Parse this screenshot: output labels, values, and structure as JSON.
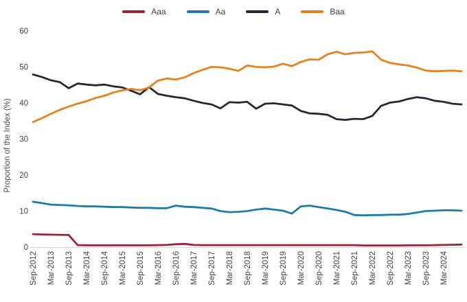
{
  "chart_data": {
    "type": "line",
    "title": "",
    "y_axis": {
      "title": "Proportion of the Index (%)",
      "min": 0,
      "max": 60,
      "tick_interval": 10,
      "ticks": [
        0,
        10,
        20,
        30,
        40,
        50,
        60
      ]
    },
    "x_axis": {
      "start_label": "Sep-2012",
      "tick_labels": [
        "Sep-2012",
        "Mar-2013",
        "Sep-2013",
        "Mar-2014",
        "Sep-2014",
        "Mar-2015",
        "Sep-2015",
        "Mar-2016",
        "Sep-2016",
        "Mar-2017",
        "Sep-2017",
        "Mar-2018",
        "Sep-2018",
        "Mar-2019",
        "Sep-2019",
        "Mar-2020",
        "Sep-2020",
        "Mar-2021",
        "Sep-2021",
        "Mar-2022",
        "Sep-2022",
        "Mar-2023",
        "Sep-2023",
        "Mar-2024"
      ],
      "labels_rotated_degrees": -90,
      "sampling": "quarterly"
    },
    "legend": {
      "position": "top",
      "items": [
        "Aaa",
        "Aa",
        "A",
        "Baa"
      ]
    },
    "grid": "off",
    "series": [
      {
        "name": "Aaa",
        "color": "#9d2235",
        "values": [
          3.6,
          3.5,
          3.45,
          3.4,
          3.35,
          0.55,
          0.5,
          0.5,
          0.5,
          0.5,
          0.5,
          0.5,
          0.5,
          0.5,
          0.55,
          0.6,
          0.8,
          0.9,
          0.6,
          0.55,
          0.55,
          0.55,
          0.55,
          0.55,
          0.55,
          0.55,
          0.55,
          0.55,
          0.55,
          0.55,
          0.55,
          0.55,
          0.55,
          0.55,
          0.55,
          0.55,
          0.55,
          0.45,
          0.45,
          0.45,
          0.45,
          0.45,
          0.5,
          0.5,
          0.5,
          0.55,
          0.6,
          0.65,
          0.7
        ]
      },
      {
        "name": "Aa",
        "color": "#1e7ca4",
        "values": [
          12.6,
          12.2,
          11.8,
          11.7,
          11.6,
          11.4,
          11.3,
          11.3,
          11.2,
          11.1,
          11.1,
          11.0,
          10.9,
          10.9,
          10.8,
          10.8,
          11.5,
          11.2,
          11.1,
          10.9,
          10.7,
          10.0,
          9.7,
          9.8,
          10.0,
          10.4,
          10.7,
          10.4,
          10.1,
          9.3,
          11.3,
          11.5,
          11.1,
          10.7,
          10.3,
          9.8,
          8.9,
          8.8,
          8.9,
          8.9,
          9.0,
          9.0,
          9.2,
          9.6,
          10.0,
          10.1,
          10.2,
          10.2,
          10.1
        ]
      },
      {
        "name": "A",
        "color": "#242832",
        "values": [
          47.9,
          47.2,
          46.3,
          45.8,
          44.1,
          45.4,
          45.1,
          44.9,
          45.1,
          44.6,
          44.3,
          43.4,
          42.4,
          44.4,
          42.5,
          42.0,
          41.6,
          41.3,
          40.6,
          40.0,
          39.6,
          38.5,
          40.2,
          40.1,
          40.3,
          38.4,
          39.8,
          39.9,
          39.6,
          39.3,
          37.8,
          37.1,
          37.0,
          36.7,
          35.5,
          35.3,
          35.6,
          35.5,
          36.4,
          39.2,
          40.1,
          40.4,
          41.1,
          41.6,
          41.3,
          40.6,
          40.3,
          39.8,
          39.6
        ]
      },
      {
        "name": "Baa",
        "color": "#e8801d",
        "values": [
          34.7,
          35.8,
          37.0,
          38.1,
          39.0,
          39.8,
          40.5,
          41.4,
          42.0,
          42.9,
          43.5,
          43.9,
          43.5,
          44.3,
          46.2,
          46.8,
          46.5,
          47.1,
          48.3,
          49.2,
          50.0,
          49.9,
          49.5,
          48.9,
          50.4,
          50.0,
          49.9,
          50.1,
          50.9,
          50.2,
          51.4,
          52.1,
          52.0,
          53.5,
          54.2,
          53.5,
          53.9,
          54.0,
          54.3,
          52.0,
          51.1,
          50.7,
          50.4,
          49.8,
          49.0,
          48.8,
          48.9,
          49.0,
          48.8
        ]
      }
    ]
  },
  "colors": {
    "text": "#434343",
    "axis_line": "#d9d9d9",
    "background": "#ffffff"
  }
}
